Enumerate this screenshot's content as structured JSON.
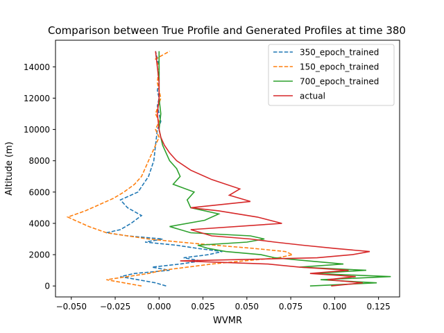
{
  "chart_data": {
    "type": "line",
    "title": "Comparison between True Profile and Generated Profiles at time 380",
    "xlabel": "WVMR",
    "ylabel": "Altitude (m)",
    "xlim": [
      -0.059,
      0.137
    ],
    "ylim": [
      -700,
      15700
    ],
    "x_ticks": [
      -0.05,
      -0.025,
      0.0,
      0.025,
      0.05,
      0.075,
      0.1,
      0.125
    ],
    "x_tick_labels": [
      "−0.050",
      "−0.025",
      "0.000",
      "0.025",
      "0.050",
      "0.075",
      "0.100",
      "0.125"
    ],
    "y_ticks": [
      0,
      2000,
      4000,
      6000,
      8000,
      10000,
      12000,
      14000
    ],
    "y_tick_labels": [
      "0",
      "2000",
      "4000",
      "6000",
      "8000",
      "10000",
      "12000",
      "14000"
    ],
    "grid": false,
    "legend_position": "top-right",
    "series": [
      {
        "name": "350_epoch_trained",
        "color": "#1f77b4",
        "dash": "dashed",
        "x": [
          0.004,
          -0.002,
          -0.012,
          -0.022,
          -0.014,
          0.006,
          -0.004,
          0.012,
          0.024,
          0.014,
          0.028,
          0.036,
          0.022,
          0.01,
          -0.008,
          0.002,
          -0.018,
          -0.03,
          -0.022,
          -0.016,
          -0.01,
          -0.018,
          -0.022,
          -0.012,
          -0.006,
          -0.003,
          -0.002,
          -0.001,
          0.001,
          0.0,
          -0.001,
          0.0,
          -0.001,
          0.0,
          0.0,
          -0.002
        ],
        "y": [
          0,
          200,
          400,
          600,
          800,
          1000,
          1200,
          1400,
          1600,
          1800,
          2000,
          2200,
          2400,
          2600,
          2800,
          3000,
          3200,
          3400,
          3600,
          4000,
          4500,
          5000,
          5500,
          6000,
          7000,
          8000,
          9000,
          10000,
          10500,
          11000,
          11500,
          12000,
          12500,
          13000,
          14000,
          15000
        ]
      },
      {
        "name": "150_epoch_trained",
        "color": "#ff7f0e",
        "dash": "dashed",
        "x": [
          -0.01,
          -0.02,
          -0.03,
          -0.018,
          -0.006,
          0.002,
          0.016,
          0.03,
          0.048,
          0.068,
          0.076,
          0.072,
          0.054,
          0.032,
          0.012,
          -0.006,
          -0.018,
          -0.03,
          -0.04,
          -0.048,
          -0.052,
          -0.042,
          -0.034,
          -0.026,
          -0.02,
          -0.014,
          -0.01,
          -0.008,
          -0.006,
          -0.004,
          -0.002,
          0.0,
          -0.002,
          0.0,
          -0.002,
          0.001,
          -0.001,
          0.0,
          -0.002,
          0.006
        ],
        "y": [
          0,
          200,
          400,
          600,
          800,
          1000,
          1200,
          1400,
          1600,
          1800,
          2000,
          2200,
          2400,
          2600,
          2800,
          3000,
          3200,
          3400,
          3800,
          4200,
          4400,
          4800,
          5200,
          5600,
          6000,
          6500,
          7000,
          7500,
          8000,
          8500,
          9000,
          9500,
          10000,
          10500,
          11000,
          12000,
          13000,
          14000,
          14500,
          15000
        ]
      },
      {
        "name": "700_epoch_trained",
        "color": "#2ca02c",
        "dash": "solid",
        "x": [
          0.086,
          0.124,
          0.092,
          0.132,
          0.088,
          0.118,
          0.08,
          0.105,
          0.085,
          0.066,
          0.058,
          0.038,
          0.028,
          0.022,
          0.05,
          0.06,
          0.052,
          0.018,
          0.006,
          0.026,
          0.034,
          0.018,
          0.016,
          0.02,
          0.008,
          0.012,
          0.01,
          0.006,
          0.004,
          0.002,
          0.001,
          0.0,
          0.001,
          0.0,
          0.0,
          0.0,
          0.0
        ],
        "y": [
          0,
          200,
          400,
          600,
          800,
          1000,
          1200,
          1400,
          1600,
          1800,
          2000,
          2200,
          2400,
          2600,
          2800,
          3000,
          3200,
          3400,
          3800,
          4200,
          4600,
          5000,
          5500,
          6000,
          6500,
          7000,
          7500,
          8000,
          8500,
          9000,
          9500,
          10000,
          11000,
          12000,
          13000,
          14000,
          15000
        ]
      },
      {
        "name": "actual",
        "color": "#d62728",
        "dash": "solid",
        "x": [
          0.098,
          0.116,
          0.096,
          0.112,
          0.086,
          0.108,
          0.08,
          0.062,
          0.012,
          0.09,
          0.11,
          0.12,
          0.1,
          0.082,
          0.066,
          0.052,
          0.03,
          0.018,
          0.07,
          0.056,
          0.034,
          0.018,
          0.052,
          0.04,
          0.046,
          0.03,
          0.018,
          0.01,
          0.006,
          0.003,
          0.001,
          0.0,
          -0.001,
          0.0,
          0.0,
          -0.001,
          -0.002
        ],
        "y": [
          0,
          200,
          400,
          600,
          800,
          1000,
          1200,
          1400,
          1600,
          1800,
          2000,
          2200,
          2400,
          2600,
          2800,
          3000,
          3200,
          3600,
          4000,
          4400,
          4800,
          5000,
          5400,
          5800,
          6200,
          6800,
          7400,
          8000,
          8500,
          9000,
          9500,
          10000,
          11000,
          12000,
          13000,
          14000,
          15000
        ]
      }
    ]
  }
}
